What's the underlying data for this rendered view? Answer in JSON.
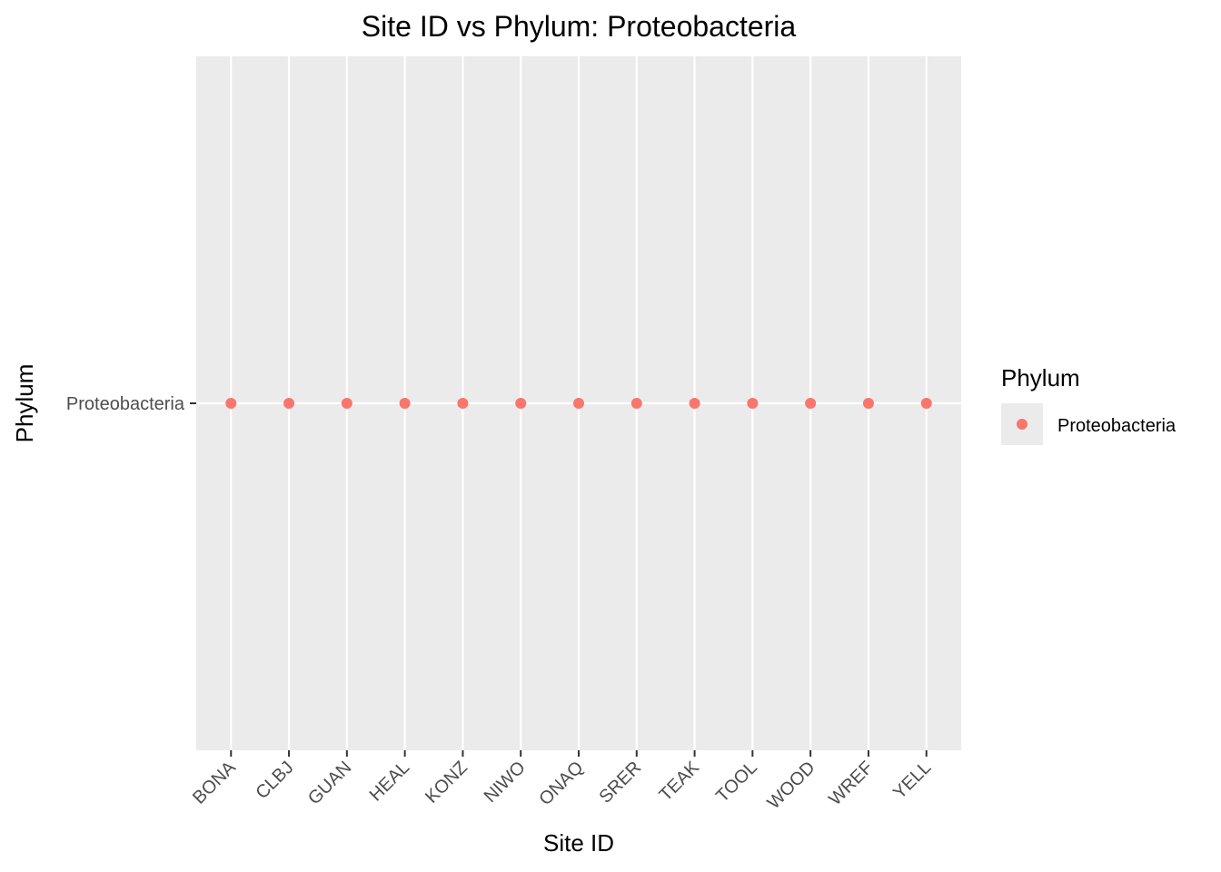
{
  "chart_data": {
    "type": "scatter",
    "title": "Site ID vs Phylum: Proteobacteria",
    "xlabel": "Site ID",
    "ylabel": "Phylum",
    "categories": [
      "BONA",
      "CLBJ",
      "GUAN",
      "HEAL",
      "KONZ",
      "NIWO",
      "ONAQ",
      "SRER",
      "TEAK",
      "TOOL",
      "WOOD",
      "WREF",
      "YELL"
    ],
    "y_categories": [
      "Proteobacteria"
    ],
    "series": [
      {
        "name": "Proteobacteria",
        "color": "#F8766D",
        "points": [
          {
            "x": "BONA",
            "y": "Proteobacteria"
          },
          {
            "x": "CLBJ",
            "y": "Proteobacteria"
          },
          {
            "x": "GUAN",
            "y": "Proteobacteria"
          },
          {
            "x": "HEAL",
            "y": "Proteobacteria"
          },
          {
            "x": "KONZ",
            "y": "Proteobacteria"
          },
          {
            "x": "NIWO",
            "y": "Proteobacteria"
          },
          {
            "x": "ONAQ",
            "y": "Proteobacteria"
          },
          {
            "x": "SRER",
            "y": "Proteobacteria"
          },
          {
            "x": "TEAK",
            "y": "Proteobacteria"
          },
          {
            "x": "TOOL",
            "y": "Proteobacteria"
          },
          {
            "x": "WOOD",
            "y": "Proteobacteria"
          },
          {
            "x": "WREF",
            "y": "Proteobacteria"
          },
          {
            "x": "YELL",
            "y": "Proteobacteria"
          }
        ]
      }
    ],
    "legend": {
      "title": "Phylum",
      "placement": "right",
      "entries": [
        "Proteobacteria"
      ]
    },
    "grid": true,
    "panel_background": "#EBEBEB",
    "grid_color": "#FFFFFF"
  }
}
